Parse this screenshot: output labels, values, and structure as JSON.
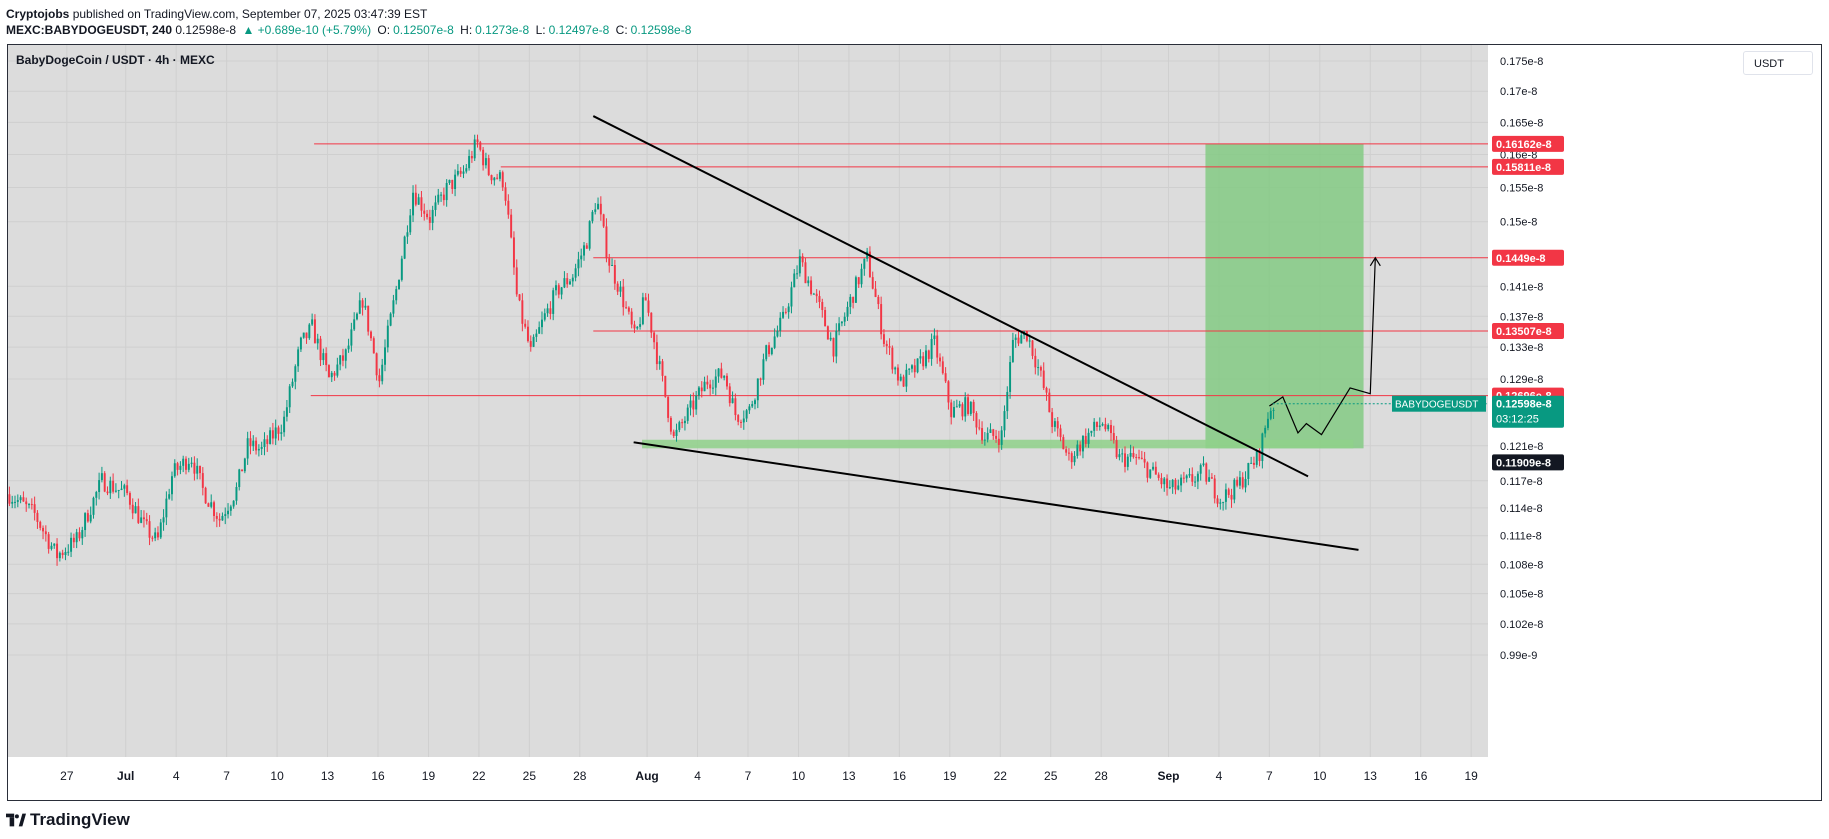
{
  "header": {
    "author": "Cryptojobs",
    "published_text": "published on TradingView.com, September 07, 2025 03:47:39 EST",
    "symbol": "MEXC:BABYDOGEUSDT, 240",
    "last": "0.12598e-8",
    "change": "▲ +0.689e-10 (+5.79%)",
    "o_label": "O:",
    "o": "0.12507e-8",
    "h_label": "H:",
    "h": "0.1273e-8",
    "l_label": "L:",
    "l": "0.12497e-8",
    "c_label": "C:",
    "c": "0.12598e-8"
  },
  "currency": "USDT",
  "brand": "TradingView",
  "colors": {
    "up": "#089981",
    "down": "#f23645",
    "level_line": "#f23645",
    "target_zone": "#7ec97e",
    "support_zone": "#8fd18a",
    "trendline": "#000000",
    "plot_bg": "#dcdcdc",
    "axis_bg": "#ffffff"
  },
  "chart_data": {
    "type": "candlestick",
    "title": "BabyDogeCoin / USDT · 4h · MEXC",
    "unit_suffix": "e-8",
    "y_scale": "log",
    "ylim": [
      0.0985,
      0.178
    ],
    "y_ticks": [
      "0.175e-8",
      "0.17e-8",
      "0.165e-8",
      "0.16e-8",
      "0.155e-8",
      "0.15e-8",
      "0.141e-8",
      "0.137e-8",
      "0.133e-8",
      "0.129e-8",
      "0.121e-8",
      "0.117e-8",
      "0.114e-8",
      "0.111e-8",
      "0.108e-8",
      "0.105e-8",
      "0.102e-8",
      "0.99e-9"
    ],
    "y_tick_values": [
      0.175,
      0.17,
      0.165,
      0.16,
      0.155,
      0.15,
      0.141,
      0.137,
      0.133,
      0.129,
      0.121,
      0.117,
      0.114,
      0.111,
      0.108,
      0.105,
      0.102,
      0.099
    ],
    "x_ticks": [
      "27",
      "Jul",
      "4",
      "7",
      "10",
      "13",
      "16",
      "19",
      "22",
      "25",
      "28",
      "Aug",
      "4",
      "7",
      "10",
      "13",
      "16",
      "19",
      "22",
      "25",
      "28",
      "Sep",
      "4",
      "7",
      "10",
      "13",
      "16",
      "19"
    ],
    "x_tick_days": [
      -3.5,
      0,
      3,
      6,
      9,
      12,
      15,
      18,
      21,
      24,
      27,
      31,
      34,
      37,
      40,
      43,
      46,
      49,
      52,
      55,
      58,
      62,
      65,
      68,
      71,
      74,
      77,
      80
    ],
    "x_tick_bold": [
      "Jul",
      "Aug",
      "Sep"
    ],
    "x_range_days": [
      -7,
      81
    ],
    "grid": true,
    "price_levels": [
      {
        "label": "0.16162e-8",
        "value": 0.16162,
        "start_day": 11.2
      },
      {
        "label": "0.15811e-8",
        "value": 0.15811,
        "start_day": 22.3
      },
      {
        "label": "0.1449e-8",
        "value": 0.1449,
        "start_day": 27.8
      },
      {
        "label": "0.13507e-8",
        "value": 0.13507,
        "start_day": 27.8
      },
      {
        "label": "0.12696e-8",
        "value": 0.12696,
        "start_day": 11.0
      }
    ],
    "current_price": {
      "symbol": "BABYDOGEUSDT",
      "label": "0.12598e-8",
      "value": 0.12598,
      "countdown": "03:12:25"
    },
    "highlight_price": {
      "label": "0.11909e-8",
      "value": 0.11909
    },
    "trendlines": [
      {
        "name": "descending resistance",
        "from": {
          "day": 27.8,
          "price": 0.166
        },
        "to": {
          "day": 70.3,
          "price": 0.1175
        }
      },
      {
        "name": "descending support",
        "from": {
          "day": 30.2,
          "price": 0.1214
        },
        "to": {
          "day": 73.3,
          "price": 0.1095
        }
      }
    ],
    "support_zone": {
      "from_day": 30.7,
      "to_day": 73.0,
      "high": 0.1217,
      "low": 0.1207
    },
    "target_zone": {
      "from_day": 64.2,
      "to_day": 73.6,
      "high": 0.16162,
      "low": 0.1207
    },
    "projection_path": [
      {
        "day": 68.0,
        "price": 0.1257
      },
      {
        "day": 68.8,
        "price": 0.1268
      },
      {
        "day": 69.7,
        "price": 0.1225
      },
      {
        "day": 70.2,
        "price": 0.1236
      },
      {
        "day": 71.1,
        "price": 0.1223
      },
      {
        "day": 72.8,
        "price": 0.1279
      },
      {
        "day": 74.0,
        "price": 0.1272
      },
      {
        "day": 74.3,
        "price": 0.1449
      }
    ],
    "ohlc_anchors": [
      {
        "day": -7,
        "price": 0.1155
      },
      {
        "day": -5.5,
        "price": 0.1133
      },
      {
        "day": -4.2,
        "price": 0.1089
      },
      {
        "day": -3,
        "price": 0.1105
      },
      {
        "day": -1.5,
        "price": 0.117
      },
      {
        "day": 0,
        "price": 0.1155
      },
      {
        "day": 1,
        "price": 0.112
      },
      {
        "day": 1.8,
        "price": 0.1103
      },
      {
        "day": 2.7,
        "price": 0.1178
      },
      {
        "day": 3.8,
        "price": 0.1198
      },
      {
        "day": 4.5,
        "price": 0.116
      },
      {
        "day": 5.5,
        "price": 0.1128
      },
      {
        "day": 6.5,
        "price": 0.116
      },
      {
        "day": 7.2,
        "price": 0.1212
      },
      {
        "day": 8,
        "price": 0.1205
      },
      {
        "day": 9.3,
        "price": 0.1238
      },
      {
        "day": 10.3,
        "price": 0.1332
      },
      {
        "day": 11,
        "price": 0.1355
      },
      {
        "day": 12,
        "price": 0.129
      },
      {
        "day": 13,
        "price": 0.132
      },
      {
        "day": 14,
        "price": 0.1392
      },
      {
        "day": 15,
        "price": 0.1288
      },
      {
        "day": 16,
        "price": 0.1405
      },
      {
        "day": 17,
        "price": 0.1545
      },
      {
        "day": 18,
        "price": 0.1505
      },
      {
        "day": 19,
        "price": 0.1548
      },
      {
        "day": 20,
        "price": 0.1573
      },
      {
        "day": 20.8,
        "price": 0.1618
      },
      {
        "day": 21.5,
        "price": 0.1573
      },
      {
        "day": 22.4,
        "price": 0.156
      },
      {
        "day": 23.2,
        "price": 0.139
      },
      {
        "day": 24,
        "price": 0.1323
      },
      {
        "day": 24.8,
        "price": 0.1368
      },
      {
        "day": 25.6,
        "price": 0.1405
      },
      {
        "day": 26.5,
        "price": 0.1425
      },
      {
        "day": 27.3,
        "price": 0.147
      },
      {
        "day": 27.9,
        "price": 0.1535
      },
      {
        "day": 28.6,
        "price": 0.1448
      },
      {
        "day": 29.3,
        "price": 0.1405
      },
      {
        "day": 30.2,
        "price": 0.134
      },
      {
        "day": 30.8,
        "price": 0.1395
      },
      {
        "day": 31.5,
        "price": 0.132
      },
      {
        "day": 32.5,
        "price": 0.1218
      },
      {
        "day": 33.5,
        "price": 0.1253
      },
      {
        "day": 34.5,
        "price": 0.1288
      },
      {
        "day": 35.5,
        "price": 0.1296
      },
      {
        "day": 36.2,
        "price": 0.1245
      },
      {
        "day": 37,
        "price": 0.1252
      },
      {
        "day": 38,
        "price": 0.1322
      },
      {
        "day": 39,
        "price": 0.1365
      },
      {
        "day": 40,
        "price": 0.1445
      },
      {
        "day": 41,
        "price": 0.139
      },
      {
        "day": 42,
        "price": 0.133
      },
      {
        "day": 43.5,
        "price": 0.142
      },
      {
        "day": 44,
        "price": 0.1448
      },
      {
        "day": 45,
        "price": 0.134
      },
      {
        "day": 46,
        "price": 0.1285
      },
      {
        "day": 47,
        "price": 0.1305
      },
      {
        "day": 48,
        "price": 0.1335
      },
      {
        "day": 49,
        "price": 0.125
      },
      {
        "day": 50,
        "price": 0.1258
      },
      {
        "day": 51,
        "price": 0.122
      },
      {
        "day": 52,
        "price": 0.1222
      },
      {
        "day": 52.7,
        "price": 0.134
      },
      {
        "day": 53.5,
        "price": 0.1348
      },
      {
        "day": 54.3,
        "price": 0.1295
      },
      {
        "day": 55,
        "price": 0.1238
      },
      {
        "day": 56,
        "price": 0.1195
      },
      {
        "day": 57,
        "price": 0.122
      },
      {
        "day": 58,
        "price": 0.1238
      },
      {
        "day": 59,
        "price": 0.1195
      },
      {
        "day": 60,
        "price": 0.1195
      },
      {
        "day": 61,
        "price": 0.1178
      },
      {
        "day": 62,
        "price": 0.116
      },
      {
        "day": 63,
        "price": 0.1168
      },
      {
        "day": 64,
        "price": 0.118
      },
      {
        "day": 65,
        "price": 0.115
      },
      {
        "day": 66,
        "price": 0.1163
      },
      {
        "day": 67.3,
        "price": 0.12
      },
      {
        "day": 67.9,
        "price": 0.1252
      },
      {
        "day": 68.2,
        "price": 0.126
      }
    ]
  }
}
